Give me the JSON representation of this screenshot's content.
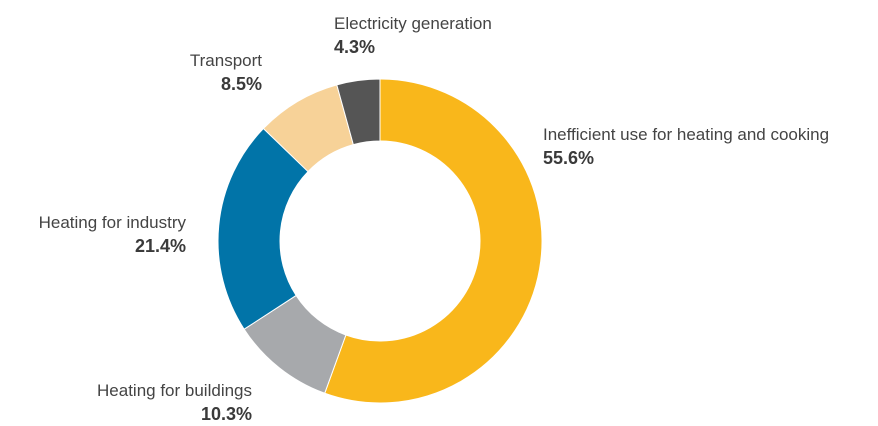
{
  "chart_data": {
    "type": "pie",
    "title": "",
    "donut": true,
    "start": "12 o'clock, clockwise",
    "slices": [
      {
        "label": "Inefficient use for heating and cooking",
        "value": 55.6,
        "value_label": "55.6%",
        "color": "#F9B71B"
      },
      {
        "label": "Heating for buildings",
        "value": 10.3,
        "value_label": "10.3%",
        "color": "#A7A9AC"
      },
      {
        "label": "Heating for industry",
        "value": 21.4,
        "value_label": "21.4%",
        "color": "#0174A8"
      },
      {
        "label": "Transport",
        "value": 8.5,
        "value_label": "8.5%",
        "color": "#F7D298"
      },
      {
        "label": "Electricity generation",
        "value": 4.3,
        "value_label": "4.3%",
        "color": "#555555"
      }
    ]
  }
}
